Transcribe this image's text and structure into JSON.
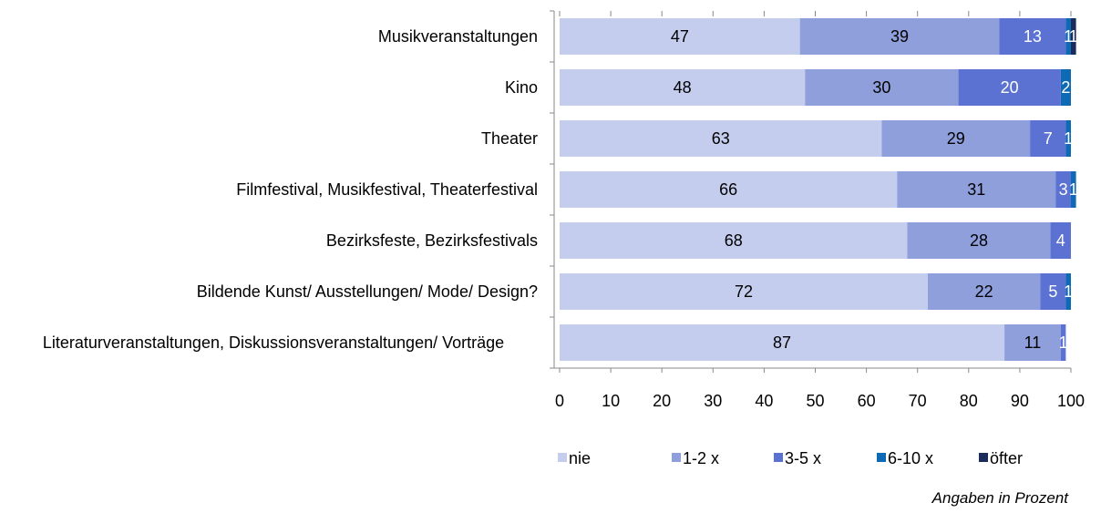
{
  "chart_data": {
    "type": "stacked-bar-horizontal",
    "categories": [
      "Musikveranstaltungen",
      "Kino",
      "Theater",
      "Filmfestival, Musikfestival, Theaterfestival",
      "Bezirksfeste, Bezirksfestivals",
      "Bildende Kunst/ Ausstellungen/ Mode/ Design?",
      "Literaturveranstaltungen, Diskussionsveranstaltungen/ Vorträge"
    ],
    "series": [
      {
        "name": "nie",
        "color": "#c5cdee",
        "values": [
          47,
          48,
          63,
          66,
          68,
          72,
          87
        ]
      },
      {
        "name": "1-2 x",
        "color": "#8e9fdc",
        "values": [
          39,
          30,
          29,
          31,
          28,
          22,
          11
        ]
      },
      {
        "name": "3-5 x",
        "color": "#5b72d2",
        "values": [
          13,
          20,
          7,
          3,
          4,
          5,
          1
        ]
      },
      {
        "name": "6-10 x",
        "color": "#0f6ab5",
        "values": [
          1,
          2,
          1,
          1,
          null,
          1,
          null
        ]
      },
      {
        "name": "öfter",
        "color": "#1a2b5c",
        "values": [
          1,
          null,
          null,
          null,
          null,
          null,
          null
        ]
      }
    ],
    "xlim": [
      0,
      100
    ],
    "xticks": [
      0,
      10,
      20,
      30,
      40,
      50,
      60,
      70,
      80,
      90,
      100
    ],
    "legend": "bottom",
    "note": "Angaben in Prozent"
  }
}
